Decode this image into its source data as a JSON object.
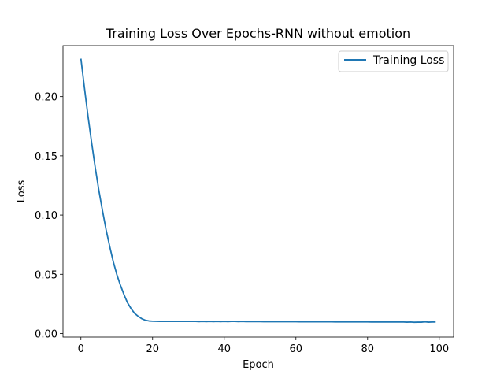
{
  "chart_data": {
    "type": "line",
    "title": "Training Loss Over Epochs-RNN without emotion",
    "xlabel": "Epoch",
    "ylabel": "Loss",
    "xlim": [
      -5,
      104
    ],
    "ylim": [
      -0.003,
      0.243
    ],
    "xticks": [
      0,
      20,
      40,
      60,
      80,
      100
    ],
    "xtick_labels": [
      "0",
      "20",
      "40",
      "60",
      "80",
      "100"
    ],
    "yticks": [
      0.0,
      0.05,
      0.1,
      0.15,
      0.2
    ],
    "ytick_labels": [
      "0.00",
      "0.05",
      "0.10",
      "0.15",
      "0.20"
    ],
    "grid": false,
    "legend_position": "top-right",
    "series": [
      {
        "name": "Training Loss",
        "color": "#1f77b4",
        "x": [
          0,
          1,
          2,
          3,
          4,
          5,
          6,
          7,
          8,
          9,
          10,
          11,
          12,
          13,
          14,
          15,
          16,
          17,
          18,
          19,
          20,
          21,
          22,
          23,
          24,
          25,
          26,
          27,
          28,
          29,
          30,
          31,
          32,
          33,
          34,
          35,
          36,
          37,
          38,
          39,
          40,
          41,
          42,
          43,
          44,
          45,
          46,
          47,
          48,
          49,
          50,
          51,
          52,
          53,
          54,
          55,
          56,
          57,
          58,
          59,
          60,
          61,
          62,
          63,
          64,
          65,
          66,
          67,
          68,
          69,
          70,
          71,
          72,
          73,
          74,
          75,
          76,
          77,
          78,
          79,
          80,
          81,
          82,
          83,
          84,
          85,
          86,
          87,
          88,
          89,
          90,
          91,
          92,
          93,
          94,
          95,
          96,
          97,
          98,
          99
        ],
        "values": [
          0.232,
          0.207,
          0.183,
          0.161,
          0.14,
          0.121,
          0.104,
          0.088,
          0.074,
          0.061,
          0.05,
          0.041,
          0.033,
          0.026,
          0.021,
          0.017,
          0.0145,
          0.0125,
          0.0112,
          0.0106,
          0.0104,
          0.0103,
          0.0102,
          0.0102,
          0.0102,
          0.0102,
          0.0102,
          0.0102,
          0.0103,
          0.0102,
          0.0102,
          0.0103,
          0.0102,
          0.0101,
          0.0102,
          0.0101,
          0.0102,
          0.0101,
          0.0102,
          0.0101,
          0.0102,
          0.0101,
          0.0102,
          0.0102,
          0.0101,
          0.0102,
          0.0101,
          0.0101,
          0.0101,
          0.0101,
          0.0101,
          0.01,
          0.0101,
          0.01,
          0.0101,
          0.01,
          0.01,
          0.01,
          0.01,
          0.01,
          0.01,
          0.0099,
          0.01,
          0.0099,
          0.01,
          0.0099,
          0.0099,
          0.0099,
          0.0099,
          0.0099,
          0.0099,
          0.0098,
          0.0099,
          0.0098,
          0.0099,
          0.0098,
          0.0098,
          0.0098,
          0.0098,
          0.0098,
          0.0098,
          0.0097,
          0.0098,
          0.0097,
          0.0098,
          0.0097,
          0.0097,
          0.0097,
          0.0097,
          0.0097,
          0.0097,
          0.0096,
          0.0097,
          0.0095,
          0.0096,
          0.0096,
          0.0099,
          0.0096,
          0.0097,
          0.0097
        ]
      }
    ]
  }
}
